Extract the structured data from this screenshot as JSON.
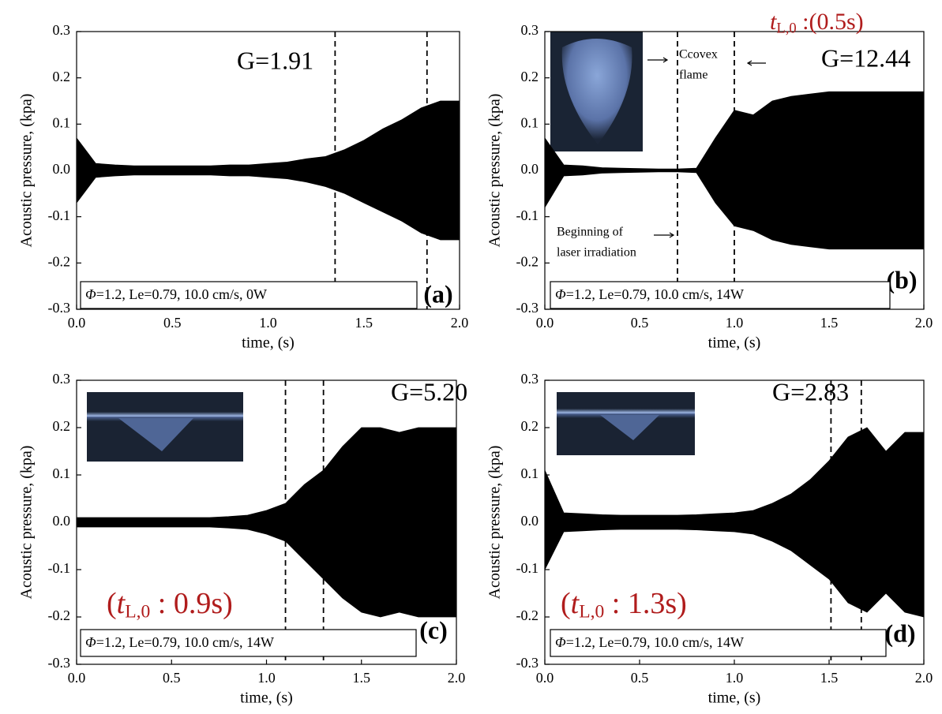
{
  "chart_data": [
    {
      "type": "area",
      "xlabel": "time, (s)",
      "ylabel": "Acoustic pressure, (kpa)",
      "x": [
        0.0,
        0.1,
        0.2,
        0.3,
        0.4,
        0.5,
        0.6,
        0.7,
        0.8,
        0.9,
        1.0,
        1.1,
        1.2,
        1.3,
        1.4,
        1.5,
        1.6,
        1.7,
        1.8,
        1.9,
        2.0
      ],
      "series": [
        {
          "color": "#000000",
          "values": [
            0.07,
            0.015,
            0.012,
            0.01,
            0.01,
            0.01,
            0.01,
            0.01,
            0.012,
            0.012,
            0.015,
            0.018,
            0.025,
            0.03,
            0.045,
            0.065,
            0.09,
            0.11,
            0.135,
            0.15,
            0.15
          ]
        },
        {
          "color": "#000000",
          "values": [
            -0.07,
            -0.015,
            -0.012,
            -0.01,
            -0.01,
            -0.01,
            -0.01,
            -0.01,
            -0.012,
            -0.012,
            -0.015,
            -0.018,
            -0.025,
            -0.035,
            -0.05,
            -0.07,
            -0.09,
            -0.11,
            -0.135,
            -0.15,
            -0.15
          ]
        }
      ],
      "vlines": [
        1.35,
        1.83
      ],
      "gain_label": "G=1.91",
      "panel_label": "(a)",
      "condition": {
        "symbol": "Φ",
        "text": "=1.2, Le=0.79, 10.0 cm/s, 0W"
      },
      "xlim": [
        0,
        2
      ],
      "xticks": [
        {
          "value": 0,
          "label": "0.0"
        },
        0.5,
        {
          "value": 1,
          "label": "1.0"
        },
        1.5,
        {
          "value": 2,
          "label": "2.0"
        }
      ],
      "ylim": [
        -0.3,
        0.3
      ],
      "yticks": [
        -0.3,
        -0.2,
        -0.1,
        {
          "value": 0,
          "label": "0.0"
        },
        0.1,
        0.2,
        0.3
      ]
    },
    {
      "type": "area",
      "xlabel": "time, (s)",
      "ylabel": "Acoustic pressure, (kpa)",
      "x": [
        0.0,
        0.1,
        0.2,
        0.3,
        0.4,
        0.5,
        0.6,
        0.7,
        0.8,
        0.9,
        1.0,
        1.1,
        1.2,
        1.3,
        1.4,
        1.5,
        1.6,
        1.7,
        1.8,
        1.9,
        2.0
      ],
      "series": [
        {
          "color": "#000000",
          "values": [
            0.07,
            0.012,
            0.01,
            0.006,
            0.005,
            0.004,
            0.003,
            0.003,
            0.005,
            0.07,
            0.13,
            0.12,
            0.15,
            0.16,
            0.165,
            0.17,
            0.17,
            0.17,
            0.17,
            0.17,
            0.17
          ]
        },
        {
          "color": "#000000",
          "values": [
            -0.08,
            -0.012,
            -0.01,
            -0.006,
            -0.005,
            -0.004,
            -0.003,
            -0.003,
            -0.005,
            -0.07,
            -0.12,
            -0.13,
            -0.15,
            -0.16,
            -0.165,
            -0.17,
            -0.17,
            -0.17,
            -0.17,
            -0.17,
            -0.17
          ]
        }
      ],
      "vlines": [
        0.7,
        1.0
      ],
      "gain_label": "G=12.44",
      "panel_label": "(b)",
      "condition": {
        "symbol": "Φ",
        "text": "=1.2, Le=0.79, 10.0 cm/s, 14W"
      },
      "laser_time": {
        "prefix": "",
        "italic": "t",
        "sub": "L,0",
        "suffix": " :(0.5s)"
      },
      "annotations": [
        "Ccovex",
        "flame",
        "Beginning of",
        "laser irradiation"
      ],
      "xlim": [
        0,
        2
      ],
      "xticks": [
        {
          "value": 0,
          "label": "0.0"
        },
        0.5,
        {
          "value": 1,
          "label": "1.0"
        },
        1.5,
        {
          "value": 2,
          "label": "2.0"
        }
      ],
      "ylim": [
        -0.3,
        0.3
      ],
      "yticks": [
        -0.3,
        -0.2,
        -0.1,
        {
          "value": 0,
          "label": "0.0"
        },
        0.1,
        0.2,
        0.3
      ]
    },
    {
      "type": "area",
      "xlabel": "time, (s)",
      "ylabel": "Acoustic pressure, (kpa)",
      "x": [
        0.0,
        0.1,
        0.2,
        0.3,
        0.4,
        0.5,
        0.6,
        0.7,
        0.8,
        0.9,
        1.0,
        1.1,
        1.2,
        1.3,
        1.4,
        1.5,
        1.6,
        1.7,
        1.8,
        1.9,
        2.0
      ],
      "series": [
        {
          "color": "#000000",
          "values": [
            0.01,
            0.01,
            0.01,
            0.01,
            0.01,
            0.01,
            0.01,
            0.01,
            0.012,
            0.015,
            0.025,
            0.04,
            0.08,
            0.11,
            0.16,
            0.2,
            0.2,
            0.19,
            0.2,
            0.2,
            0.2
          ]
        },
        {
          "color": "#000000",
          "values": [
            -0.01,
            -0.01,
            -0.01,
            -0.01,
            -0.01,
            -0.01,
            -0.01,
            -0.01,
            -0.012,
            -0.015,
            -0.025,
            -0.04,
            -0.08,
            -0.12,
            -0.16,
            -0.19,
            -0.2,
            -0.19,
            -0.2,
            -0.2,
            -0.2
          ]
        }
      ],
      "vlines": [
        1.1,
        1.3
      ],
      "gain_label": "G=5.20",
      "panel_label": "(c)",
      "condition": {
        "symbol": "Φ",
        "text": "=1.2, Le=0.79, 10.0 cm/s, 14W"
      },
      "laser_time": {
        "prefix": "(",
        "italic": "t",
        "sub": "L,0",
        "suffix": " : 0.9s)"
      },
      "xlim": [
        0,
        2
      ],
      "xticks": [
        {
          "value": 0,
          "label": "0.0"
        },
        0.5,
        {
          "value": 1,
          "label": "1.0"
        },
        1.5,
        {
          "value": 2,
          "label": "2.0"
        }
      ],
      "ylim": [
        -0.3,
        0.3
      ],
      "yticks": [
        -0.3,
        -0.2,
        -0.1,
        {
          "value": 0,
          "label": "0.0"
        },
        0.1,
        0.2,
        0.3
      ]
    },
    {
      "type": "area",
      "xlabel": "time, (s)",
      "ylabel": "Acoustic pressure, (kpa)",
      "x": [
        0.0,
        0.1,
        0.2,
        0.3,
        0.4,
        0.5,
        0.6,
        0.7,
        0.8,
        0.9,
        1.0,
        1.1,
        1.2,
        1.3,
        1.4,
        1.5,
        1.6,
        1.7,
        1.8,
        1.9,
        2.0
      ],
      "series": [
        {
          "color": "#000000",
          "values": [
            0.11,
            0.02,
            0.018,
            0.016,
            0.015,
            0.015,
            0.015,
            0.015,
            0.016,
            0.018,
            0.02,
            0.025,
            0.04,
            0.06,
            0.09,
            0.13,
            0.18,
            0.2,
            0.15,
            0.19,
            0.19
          ]
        },
        {
          "color": "#000000",
          "values": [
            -0.1,
            -0.02,
            -0.018,
            -0.016,
            -0.015,
            -0.015,
            -0.015,
            -0.015,
            -0.016,
            -0.018,
            -0.02,
            -0.025,
            -0.04,
            -0.06,
            -0.09,
            -0.12,
            -0.17,
            -0.19,
            -0.15,
            -0.19,
            -0.2
          ]
        }
      ],
      "vlines": [
        1.51,
        1.67
      ],
      "gain_label": "G=2.83",
      "panel_label": "(d)",
      "condition": {
        "symbol": "Φ",
        "text": "=1.2, Le=0.79, 10.0 cm/s, 14W"
      },
      "laser_time": {
        "prefix": "(",
        "italic": "t",
        "sub": "L,0",
        "suffix": " : 1.3s)"
      },
      "xlim": [
        0,
        2
      ],
      "xticks": [
        {
          "value": 0,
          "label": "0.0"
        },
        0.5,
        {
          "value": 1,
          "label": "1.0"
        },
        1.5,
        {
          "value": 2,
          "label": "2.0"
        }
      ],
      "ylim": [
        -0.3,
        0.3
      ],
      "yticks": [
        -0.3,
        -0.2,
        -0.1,
        {
          "value": 0,
          "label": "0.0"
        },
        0.1,
        0.2,
        0.3
      ]
    }
  ]
}
